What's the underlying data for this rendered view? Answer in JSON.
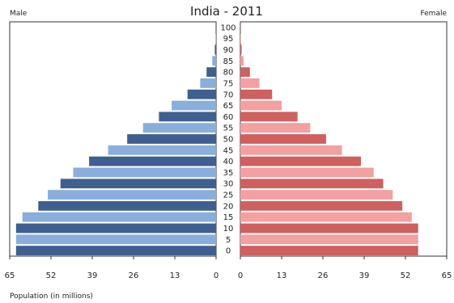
{
  "chart_data": {
    "type": "bar",
    "title": "India - 2011",
    "left_label": "Male",
    "right_label": "Female",
    "xlabel": "Population (in millions)",
    "age_labels": [
      "0",
      "5",
      "10",
      "15",
      "20",
      "25",
      "30",
      "35",
      "40",
      "45",
      "50",
      "55",
      "60",
      "65",
      "70",
      "75",
      "80",
      "85",
      "90",
      "95",
      "100"
    ],
    "x_ticks_left": [
      "65",
      "52",
      "39",
      "26",
      "13",
      "0"
    ],
    "x_ticks_right": [
      "0",
      "13",
      "26",
      "39",
      "52",
      "65"
    ],
    "xlim": [
      0,
      65
    ],
    "series": [
      {
        "name": "Male",
        "color_light": "#8aaedc",
        "color_dark": "#3f5f90",
        "values": [
          63,
          63,
          63,
          61,
          56,
          53,
          49,
          45,
          40,
          34,
          28,
          23,
          18,
          14,
          9,
          5,
          3,
          1.2,
          0.4,
          0.1,
          0.05
        ]
      },
      {
        "name": "Female",
        "color_light": "#f2a0a0",
        "color_dark": "#d05f5f",
        "values": [
          56,
          56,
          56,
          54,
          51,
          48,
          45,
          42,
          38,
          32,
          27,
          22,
          18,
          13,
          10,
          6,
          3,
          1.0,
          0.4,
          0.1,
          0.05
        ]
      }
    ]
  }
}
